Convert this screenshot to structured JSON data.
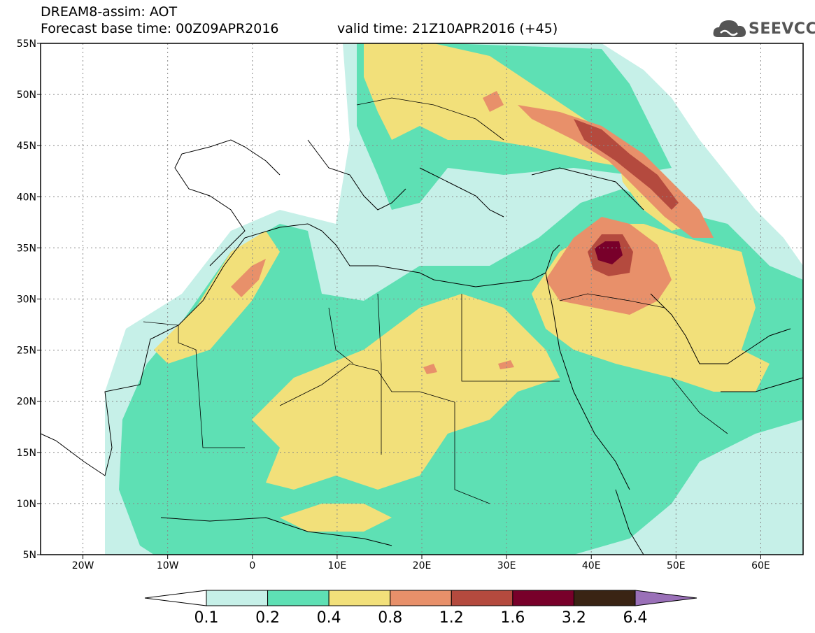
{
  "header": {
    "model_line": "DREAM8-assim: AOT",
    "base_time_line": "Forecast base time: 00Z09APR2016",
    "valid_time_line": "valid time: 21Z10APR2016 (+45)",
    "logo_text": "SEEVCCC"
  },
  "map": {
    "lon_range": [
      -25,
      65
    ],
    "lat_range": [
      5,
      55
    ],
    "lon_ticks": [
      {
        "value": -20,
        "label": "20W"
      },
      {
        "value": -10,
        "label": "10W"
      },
      {
        "value": 0,
        "label": "0"
      },
      {
        "value": 10,
        "label": "10E"
      },
      {
        "value": 20,
        "label": "20E"
      },
      {
        "value": 30,
        "label": "30E"
      },
      {
        "value": 40,
        "label": "40E"
      },
      {
        "value": 50,
        "label": "50E"
      },
      {
        "value": 60,
        "label": "60E"
      }
    ],
    "lat_ticks": [
      {
        "value": 55,
        "label": "55N"
      },
      {
        "value": 50,
        "label": "50N"
      },
      {
        "value": 45,
        "label": "45N"
      },
      {
        "value": 40,
        "label": "40N"
      },
      {
        "value": 35,
        "label": "35N"
      },
      {
        "value": 30,
        "label": "30N"
      },
      {
        "value": 25,
        "label": "25N"
      },
      {
        "value": 20,
        "label": "20N"
      },
      {
        "value": 15,
        "label": "15N"
      },
      {
        "value": 10,
        "label": "10N"
      },
      {
        "value": 5,
        "label": "5N"
      }
    ],
    "grid": true
  },
  "colorbar": {
    "levels": [
      "0.1",
      "0.2",
      "0.4",
      "0.8",
      "1.2",
      "1.6",
      "3.2",
      "6.4"
    ],
    "colors": [
      "#ffffff",
      "#c6f0e8",
      "#5ee0b4",
      "#f2e07a",
      "#e8906a",
      "#b44a3e",
      "#78002a",
      "#3a2414",
      "#9a70b8"
    ]
  },
  "colors": {
    "c01": "#c6f0e8",
    "c02": "#5ee0b4",
    "c04": "#f2e07a",
    "c08": "#e8906a",
    "c12": "#b44a3e",
    "c16": "#78002a"
  }
}
